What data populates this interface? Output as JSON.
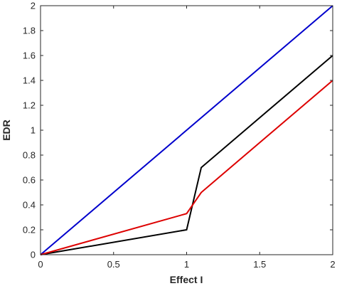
{
  "chart_data": {
    "type": "line",
    "title": "",
    "xlabel": "Effect I",
    "ylabel": "EDR",
    "xlim": [
      0,
      2
    ],
    "ylim": [
      0,
      2
    ],
    "xticks": [
      "0",
      "0.5",
      "1",
      "1.5",
      "2"
    ],
    "yticks": [
      "0",
      "0.2",
      "0.4",
      "0.6",
      "0.8",
      "1",
      "1.2",
      "1.4",
      "1.6",
      "1.8",
      "2"
    ],
    "grid": false,
    "series": [
      {
        "color": "#0000cc",
        "x": [
          0,
          2
        ],
        "y": [
          0,
          2
        ]
      },
      {
        "color": "#000000",
        "x": [
          0,
          1,
          1.1,
          2
        ],
        "y": [
          0,
          0.2,
          0.7,
          1.6
        ]
      },
      {
        "color": "#dd0000",
        "x": [
          0,
          1,
          1.1,
          2
        ],
        "y": [
          0,
          0.33,
          0.5,
          1.4
        ]
      }
    ]
  }
}
